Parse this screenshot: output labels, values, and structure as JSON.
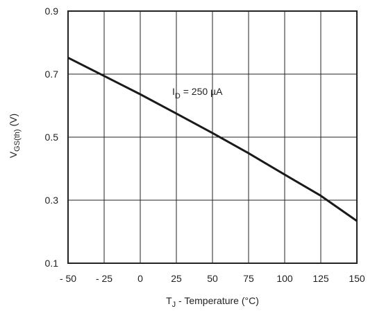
{
  "chart_data": {
    "type": "line",
    "x_ticks": [
      "- 50",
      "- 25",
      "0",
      "25",
      "50",
      "75",
      "100",
      "125",
      "150"
    ],
    "y_ticks": [
      "0.1",
      "0.3",
      "0.5",
      "0.7",
      "0.9"
    ],
    "xlim": [
      -50,
      150
    ],
    "ylim": [
      0.1,
      0.9
    ],
    "grid": true,
    "xlabel": {
      "main": "T",
      "sub": "J",
      "rest": " - Temperature (°C)"
    },
    "ylabel": {
      "main": "V",
      "sub": "GS(th)",
      "rest": "  (V)"
    },
    "annotation": {
      "main": "I",
      "sub": "D",
      "rest": " = 250 µA"
    },
    "series": [
      {
        "x": [
          -50,
          -25,
          0,
          25,
          50,
          75,
          100,
          125,
          150
        ],
        "y": [
          0.752,
          0.694,
          0.636,
          0.575,
          0.513,
          0.449,
          0.381,
          0.314,
          0.234
        ]
      }
    ]
  }
}
